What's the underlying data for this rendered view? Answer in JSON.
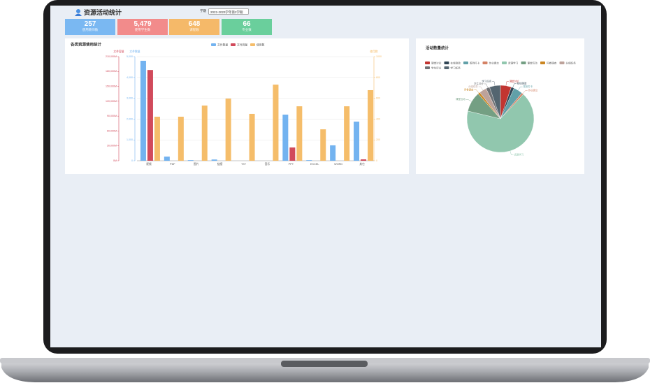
{
  "header": {
    "title": "资源活动统计",
    "term_label": "学期",
    "term": "2022-2023学年第2学期"
  },
  "stats": [
    {
      "value": "257",
      "label": "使用教师数",
      "color": "#7ab8f2"
    },
    {
      "value": "5,479",
      "label": "使用学生数",
      "color": "#f28b8b"
    },
    {
      "value": "648",
      "label": "课程数",
      "color": "#f5b969"
    },
    {
      "value": "66",
      "label": "专业数",
      "color": "#6acf9c"
    }
  ],
  "chart_data": [
    {
      "type": "bar",
      "title": "各类资源使用统计",
      "categories": [
        "视频",
        "PDF",
        "图片",
        "链接",
        "TXT",
        "音乐",
        "PPT",
        "EXCEL",
        "WORD",
        "其它"
      ],
      "series": [
        {
          "name": "文件数量",
          "color": "#73b3f0",
          "axis": "y",
          "values": [
            4800,
            200,
            30,
            60,
            0,
            0,
            2215,
            30,
            740,
            1880
          ]
        },
        {
          "name": "文件容量",
          "color": "#d14a5b",
          "axis": "y2",
          "values": [
            183000,
            0,
            0,
            0,
            0,
            0,
            26800,
            0,
            0,
            2800
          ]
        },
        {
          "name": "使用数",
          "color": "#f5bd6a",
          "axis": "y3",
          "values": [
            423,
            423,
            530,
            597,
            450,
            731,
            523,
            302,
            523,
            678
          ]
        }
      ],
      "ylabel": "文件数量",
      "ylim": [
        0,
        5000
      ],
      "yticks": [
        0,
        {
          "value": 1000,
          "label": "1,000"
        },
        {
          "value": 2000,
          "label": "2,000"
        },
        {
          "value": 3000,
          "label": "3,000"
        },
        {
          "value": 4000,
          "label": "4,000"
        },
        {
          "value": 5000,
          "label": "5,000"
        }
      ],
      "y2label": "文件容量",
      "y2lim": [
        0,
        210000
      ],
      "y2ticks": [
        {
          "value": 0,
          "label": "0M"
        },
        {
          "value": 30000,
          "label": "30,000M"
        },
        {
          "value": 60000,
          "label": "60,000M"
        },
        {
          "value": 90000,
          "label": "90,000M"
        },
        {
          "value": 120000,
          "label": "120,000M"
        },
        {
          "value": 150000,
          "label": "150,000M"
        },
        {
          "value": 180000,
          "label": "180,000M"
        },
        {
          "value": 210000,
          "label": "210,000M"
        }
      ],
      "y3label": "使用数",
      "y3lim": [
        0,
        1000
      ],
      "y3ticks": [
        0,
        200,
        400,
        600,
        800,
        1000
      ],
      "grid": true
    },
    {
      "type": "pie",
      "title": "活动数量统计",
      "categories": [
        "课堂讨论",
        "在线测验",
        "签到打卡",
        "作业提交",
        "资源学习",
        "课堂互动",
        "问卷调查",
        "分组任务",
        "学生评分",
        "学习任务"
      ],
      "values": [
        30,
        8,
        25,
        5,
        380,
        55,
        6,
        20,
        10,
        30
      ],
      "colors": [
        "#c23531",
        "#2f4554",
        "#61a0a8",
        "#d48265",
        "#91c7ae",
        "#749f83",
        "#ca8622",
        "#bda29a",
        "#6e7074",
        "#546570"
      ]
    }
  ]
}
